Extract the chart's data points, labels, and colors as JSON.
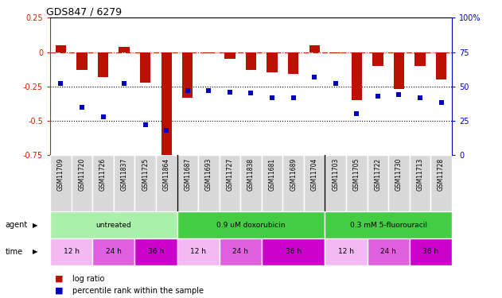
{
  "title": "GDS847 / 6279",
  "samples": [
    "GSM11709",
    "GSM11720",
    "GSM11726",
    "GSM11837",
    "GSM11725",
    "GSM11864",
    "GSM11687",
    "GSM11693",
    "GSM11727",
    "GSM11838",
    "GSM11681",
    "GSM11689",
    "GSM11704",
    "GSM11703",
    "GSM11705",
    "GSM11722",
    "GSM11730",
    "GSM11713",
    "GSM11728"
  ],
  "log_ratio": [
    0.05,
    -0.13,
    -0.18,
    0.04,
    -0.22,
    -0.78,
    -0.33,
    -0.01,
    -0.05,
    -0.13,
    -0.15,
    -0.16,
    0.05,
    -0.01,
    -0.35,
    -0.1,
    -0.27,
    -0.1,
    -0.2
  ],
  "percentile": [
    52,
    35,
    28,
    52,
    22,
    18,
    47,
    47,
    46,
    45,
    42,
    42,
    57,
    52,
    30,
    43,
    44,
    42,
    38
  ],
  "ylim_left": [
    -0.75,
    0.25
  ],
  "ylim_right": [
    0,
    100
  ],
  "agent_groups": [
    {
      "label": "untreated",
      "start": 0,
      "end": 6,
      "color": "#aaf0aa"
    },
    {
      "label": "0.9 uM doxorubicin",
      "start": 6,
      "end": 13,
      "color": "#44dd44"
    },
    {
      "label": "0.3 mM 5-fluorouracil",
      "start": 13,
      "end": 19,
      "color": "#44dd44"
    }
  ],
  "time_groups": [
    {
      "label": "12 h",
      "start": 0,
      "end": 2,
      "color": "#f4b8f4"
    },
    {
      "label": "24 h",
      "start": 2,
      "end": 4,
      "color": "#e070e0"
    },
    {
      "label": "36 h",
      "start": 4,
      "end": 6,
      "color": "#cc00cc"
    },
    {
      "label": "12 h",
      "start": 6,
      "end": 8,
      "color": "#f4b8f4"
    },
    {
      "label": "24 h",
      "start": 8,
      "end": 10,
      "color": "#e070e0"
    },
    {
      "label": "36 h",
      "start": 10,
      "end": 13,
      "color": "#cc00cc"
    },
    {
      "label": "12 h",
      "start": 13,
      "end": 15,
      "color": "#f4b8f4"
    },
    {
      "label": "24 h",
      "start": 15,
      "end": 17,
      "color": "#e070e0"
    },
    {
      "label": "36 h",
      "start": 17,
      "end": 19,
      "color": "#cc00cc"
    }
  ],
  "bar_color": "#bb1100",
  "dot_color": "#0000bb",
  "zero_line_color": "#cc2200",
  "hline_color": "#000000",
  "label_color_left": "#cc2200",
  "label_color_right": "#0000cc",
  "legend_items": [
    {
      "label": "log ratio",
      "color": "#bb1100"
    },
    {
      "label": "percentile rank within the sample",
      "color": "#0000bb"
    }
  ],
  "cell_bg": "#d8d8d8",
  "cell_border": "#ffffff"
}
